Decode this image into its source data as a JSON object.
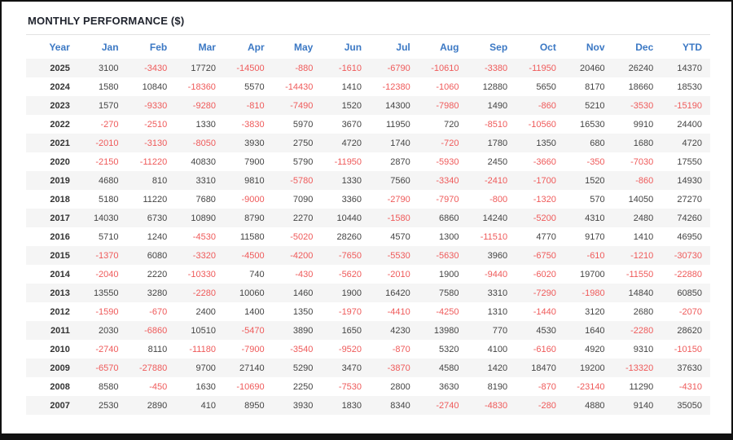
{
  "panel": {
    "title": "MONTHLY PERFORMANCE ($)"
  },
  "colors": {
    "title": "#20242e",
    "header_blue": "#3b78c4",
    "positive": "#444444",
    "negative": "#ef5a5a",
    "row_alt": "#f5f5f5",
    "divider": "#e2e2e2",
    "frame": "#111111",
    "bg": "#ffffff"
  },
  "chart_data": {
    "type": "table",
    "title": "MONTHLY PERFORMANCE ($)",
    "columns": [
      "Year",
      "Jan",
      "Feb",
      "Mar",
      "Apr",
      "May",
      "Jun",
      "Jul",
      "Aug",
      "Sep",
      "Oct",
      "Nov",
      "Dec",
      "YTD"
    ],
    "rows": [
      [
        2025,
        3100,
        -3430,
        17720,
        -14500,
        -880,
        -1610,
        -6790,
        -10610,
        -3380,
        -11950,
        20460,
        26240,
        14370
      ],
      [
        2024,
        1580,
        10840,
        -18360,
        5570,
        -14430,
        1410,
        -12380,
        -1060,
        12880,
        5650,
        8170,
        18660,
        18530
      ],
      [
        2023,
        1570,
        -9330,
        -9280,
        -810,
        -7490,
        1520,
        14300,
        -7980,
        1490,
        -860,
        5210,
        -3530,
        -15190
      ],
      [
        2022,
        -270,
        -2510,
        1330,
        -3830,
        5970,
        3670,
        11950,
        720,
        -8510,
        -10560,
        16530,
        9910,
        24400
      ],
      [
        2021,
        -2010,
        -3130,
        -8050,
        3930,
        2750,
        4720,
        1740,
        -720,
        1780,
        1350,
        680,
        1680,
        4720
      ],
      [
        2020,
        -2150,
        -11220,
        40830,
        7900,
        5790,
        -11950,
        2870,
        -5930,
        2450,
        -3660,
        -350,
        -7030,
        17550
      ],
      [
        2019,
        4680,
        810,
        3310,
        9810,
        -5780,
        1330,
        7560,
        -3340,
        -2410,
        -1700,
        1520,
        -860,
        14930
      ],
      [
        2018,
        5180,
        11220,
        7680,
        -9000,
        7090,
        3360,
        -2790,
        -7970,
        -800,
        -1320,
        570,
        14050,
        27270
      ],
      [
        2017,
        14030,
        6730,
        10890,
        8790,
        2270,
        10440,
        -1580,
        6860,
        14240,
        -5200,
        4310,
        2480,
        74260
      ],
      [
        2016,
        5710,
        1240,
        -4530,
        11580,
        -5020,
        28260,
        4570,
        1300,
        -11510,
        4770,
        9170,
        1410,
        46950
      ],
      [
        2015,
        -1370,
        6080,
        -3320,
        -4500,
        -4200,
        -7650,
        -5530,
        -5630,
        3960,
        -6750,
        -610,
        -1210,
        -30730
      ],
      [
        2014,
        -2040,
        2220,
        -10330,
        740,
        -430,
        -5620,
        -2010,
        1900,
        -9440,
        -6020,
        19700,
        -11550,
        -22880
      ],
      [
        2013,
        13550,
        3280,
        -2280,
        10060,
        1460,
        1900,
        16420,
        7580,
        3310,
        -7290,
        -1980,
        14840,
        60850
      ],
      [
        2012,
        -1590,
        -670,
        2400,
        1400,
        1350,
        -1970,
        -4410,
        -4250,
        1310,
        -1440,
        3120,
        2680,
        -2070
      ],
      [
        2011,
        2030,
        -6860,
        10510,
        -5470,
        3890,
        1650,
        4230,
        13980,
        770,
        4530,
        1640,
        -2280,
        28620
      ],
      [
        2010,
        -2740,
        8110,
        -11180,
        -7900,
        -3540,
        -9520,
        -870,
        5320,
        4100,
        -6160,
        4920,
        9310,
        -10150
      ],
      [
        2009,
        -6570,
        -27880,
        9700,
        27140,
        5290,
        3470,
        -3870,
        4580,
        1420,
        18470,
        19200,
        -13320,
        37630
      ],
      [
        2008,
        8580,
        -450,
        1630,
        -10690,
        2250,
        -7530,
        2800,
        3630,
        8190,
        -870,
        -23140,
        11290,
        -4310
      ],
      [
        2007,
        2530,
        2890,
        410,
        8950,
        3930,
        1830,
        8340,
        -2740,
        -4830,
        -280,
        4880,
        9140,
        35050
      ]
    ]
  }
}
